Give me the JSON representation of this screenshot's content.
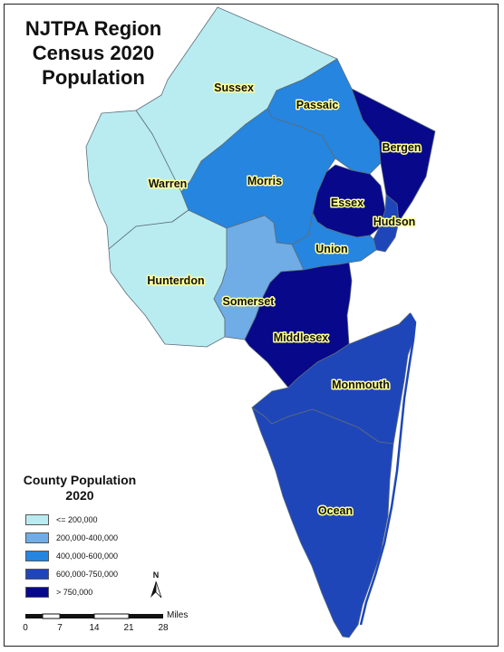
{
  "title": {
    "lines": [
      "NJTPA Region",
      "Census 2020",
      "Population"
    ]
  },
  "colors": {
    "class_1": "#b9ecf0",
    "class_2": "#70ade6",
    "class_3": "#2585df",
    "class_4": "#1f46b9",
    "class_5": "#07098a",
    "boundary": "#5d6d7a",
    "label_halo": "#ffff99"
  },
  "counties": [
    {
      "name": "Sussex",
      "class": "class_1"
    },
    {
      "name": "Passaic",
      "class": "class_3"
    },
    {
      "name": "Bergen",
      "class": "class_5"
    },
    {
      "name": "Warren",
      "class": "class_1"
    },
    {
      "name": "Morris",
      "class": "class_3"
    },
    {
      "name": "Essex",
      "class": "class_5"
    },
    {
      "name": "Hudson",
      "class": "class_4"
    },
    {
      "name": "Union",
      "class": "class_3"
    },
    {
      "name": "Hunterdon",
      "class": "class_1"
    },
    {
      "name": "Somerset",
      "class": "class_2"
    },
    {
      "name": "Middlesex",
      "class": "class_5"
    },
    {
      "name": "Monmouth",
      "class": "class_4"
    },
    {
      "name": "Ocean",
      "class": "class_4"
    }
  ],
  "legend": {
    "title_lines": [
      "County Population",
      "2020"
    ],
    "items": [
      {
        "label": "<= 200,000",
        "class": "class_1"
      },
      {
        "label": "200,000-400,000",
        "class": "class_2"
      },
      {
        "label": "400,000-600,000",
        "class": "class_3"
      },
      {
        "label": "600,000-750,000",
        "class": "class_4"
      },
      {
        "label": "> 750,000",
        "class": "class_5"
      }
    ]
  },
  "north_arrow": {
    "label": "N"
  },
  "scale_bar": {
    "unit": "Miles",
    "ticks": [
      "0",
      "7",
      "14",
      "21",
      "28"
    ]
  }
}
